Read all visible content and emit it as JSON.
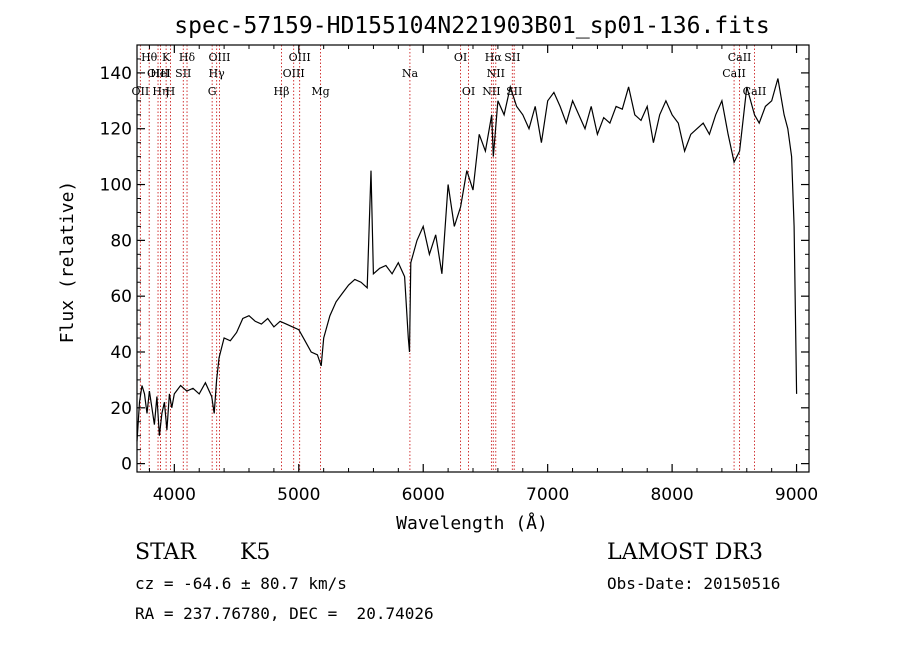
{
  "chart_data": {
    "type": "line",
    "title": "spec-57159-HD155104N221903B01_sp01-136.fits",
    "xlabel": "Wavelength (Å)",
    "ylabel": "Flux (relative)",
    "xlim": [
      3700,
      9100
    ],
    "ylim": [
      -3,
      150
    ],
    "x_ticks": [
      4000,
      5000,
      6000,
      7000,
      8000,
      9000
    ],
    "y_ticks": [
      0,
      20,
      40,
      60,
      80,
      100,
      120,
      140
    ],
    "grid": false,
    "series": [
      {
        "x": [
          3700,
          3720,
          3740,
          3760,
          3780,
          3800,
          3820,
          3840,
          3860,
          3880,
          3900,
          3920,
          3940,
          3960,
          3980,
          4000,
          4050,
          4100,
          4150,
          4200,
          4250,
          4300,
          4320,
          4340,
          4360,
          4400,
          4450,
          4500,
          4550,
          4600,
          4650,
          4700,
          4750,
          4800,
          4850,
          4900,
          4950,
          5000,
          5050,
          5100,
          5150,
          5180,
          5200,
          5250,
          5300,
          5350,
          5400,
          5450,
          5500,
          5550,
          5580,
          5600,
          5650,
          5700,
          5750,
          5800,
          5850,
          5880,
          5890,
          5900,
          5950,
          6000,
          6050,
          6100,
          6150,
          6200,
          6250,
          6300,
          6350,
          6400,
          6450,
          6500,
          6550,
          6563,
          6600,
          6650,
          6700,
          6750,
          6800,
          6850,
          6900,
          6950,
          7000,
          7050,
          7100,
          7150,
          7200,
          7250,
          7300,
          7350,
          7400,
          7450,
          7500,
          7550,
          7600,
          7650,
          7700,
          7750,
          7800,
          7850,
          7900,
          7950,
          8000,
          8050,
          8100,
          8150,
          8200,
          8250,
          8300,
          8350,
          8400,
          8450,
          8498,
          8542,
          8600,
          8662,
          8700,
          8750,
          8800,
          8850,
          8900,
          8930,
          8960,
          8980,
          9000
        ],
        "y": [
          8,
          22,
          28,
          25,
          18,
          26,
          20,
          14,
          24,
          10,
          18,
          22,
          12,
          25,
          20,
          25,
          28,
          26,
          27,
          25,
          29,
          24,
          18,
          30,
          38,
          45,
          44,
          47,
          52,
          53,
          51,
          50,
          52,
          49,
          51,
          50,
          49,
          48,
          44,
          40,
          39,
          35,
          45,
          53,
          58,
          61,
          64,
          66,
          65,
          63,
          105,
          68,
          70,
          71,
          68,
          72,
          67,
          45,
          40,
          72,
          80,
          85,
          75,
          82,
          68,
          100,
          85,
          92,
          105,
          98,
          118,
          112,
          125,
          110,
          130,
          125,
          135,
          128,
          125,
          120,
          128,
          115,
          130,
          133,
          128,
          122,
          130,
          125,
          120,
          128,
          118,
          124,
          122,
          128,
          127,
          135,
          125,
          123,
          128,
          115,
          125,
          130,
          125,
          122,
          112,
          118,
          120,
          122,
          118,
          125,
          130,
          118,
          108,
          112,
          135,
          125,
          122,
          128,
          130,
          138,
          125,
          120,
          110,
          85,
          25
        ]
      }
    ],
    "annotations": [
      {
        "label": "OII",
        "x": 3727,
        "row": 3
      },
      {
        "label": "Hθ",
        "x": 3798,
        "row": 1
      },
      {
        "label": "OIII",
        "x": 3869,
        "row": 2
      },
      {
        "label": "Hη",
        "x": 3889,
        "row": 3
      },
      {
        "label": "HeI",
        "x": 3889,
        "row": 2
      },
      {
        "label": "K",
        "x": 3934,
        "row": 1
      },
      {
        "label": "H",
        "x": 3969,
        "row": 3
      },
      {
        "label": "SII",
        "x": 4072,
        "row": 2
      },
      {
        "label": "Hδ",
        "x": 4102,
        "row": 1
      },
      {
        "label": "G",
        "x": 4304,
        "row": 3
      },
      {
        "label": "Hγ",
        "x": 4340,
        "row": 2
      },
      {
        "label": "OIII",
        "x": 4363,
        "row": 1
      },
      {
        "label": "Hβ",
        "x": 4861,
        "row": 3
      },
      {
        "label": "OIII",
        "x": 4959,
        "row": 2
      },
      {
        "label": "OIII",
        "x": 5007,
        "row": 1
      },
      {
        "label": "Mg",
        "x": 5175,
        "row": 3
      },
      {
        "label": "Na",
        "x": 5893,
        "row": 2
      },
      {
        "label": "OI",
        "x": 6300,
        "row": 1
      },
      {
        "label": "OI",
        "x": 6364,
        "row": 3
      },
      {
        "label": "NII",
        "x": 6548,
        "row": 3
      },
      {
        "label": "Hα",
        "x": 6563,
        "row": 1
      },
      {
        "label": "NII",
        "x": 6583,
        "row": 2
      },
      {
        "label": "SII",
        "x": 6716,
        "row": 1
      },
      {
        "label": "SII",
        "x": 6731,
        "row": 3
      },
      {
        "label": "CaII",
        "x": 8498,
        "row": 2
      },
      {
        "label": "CaII",
        "x": 8542,
        "row": 1
      },
      {
        "label": "CaII",
        "x": 8662,
        "row": 3
      }
    ]
  },
  "info": {
    "class": "STAR",
    "subclass": "K5",
    "survey": "LAMOST DR3",
    "cz": "cz = -64.6 ± 80.7 km/s",
    "obs_date": "Obs-Date: 20150516",
    "coords": "RA = 237.76780, DEC =  20.74026"
  },
  "colors": {
    "line": "#000000",
    "marker": "#cc2222"
  }
}
